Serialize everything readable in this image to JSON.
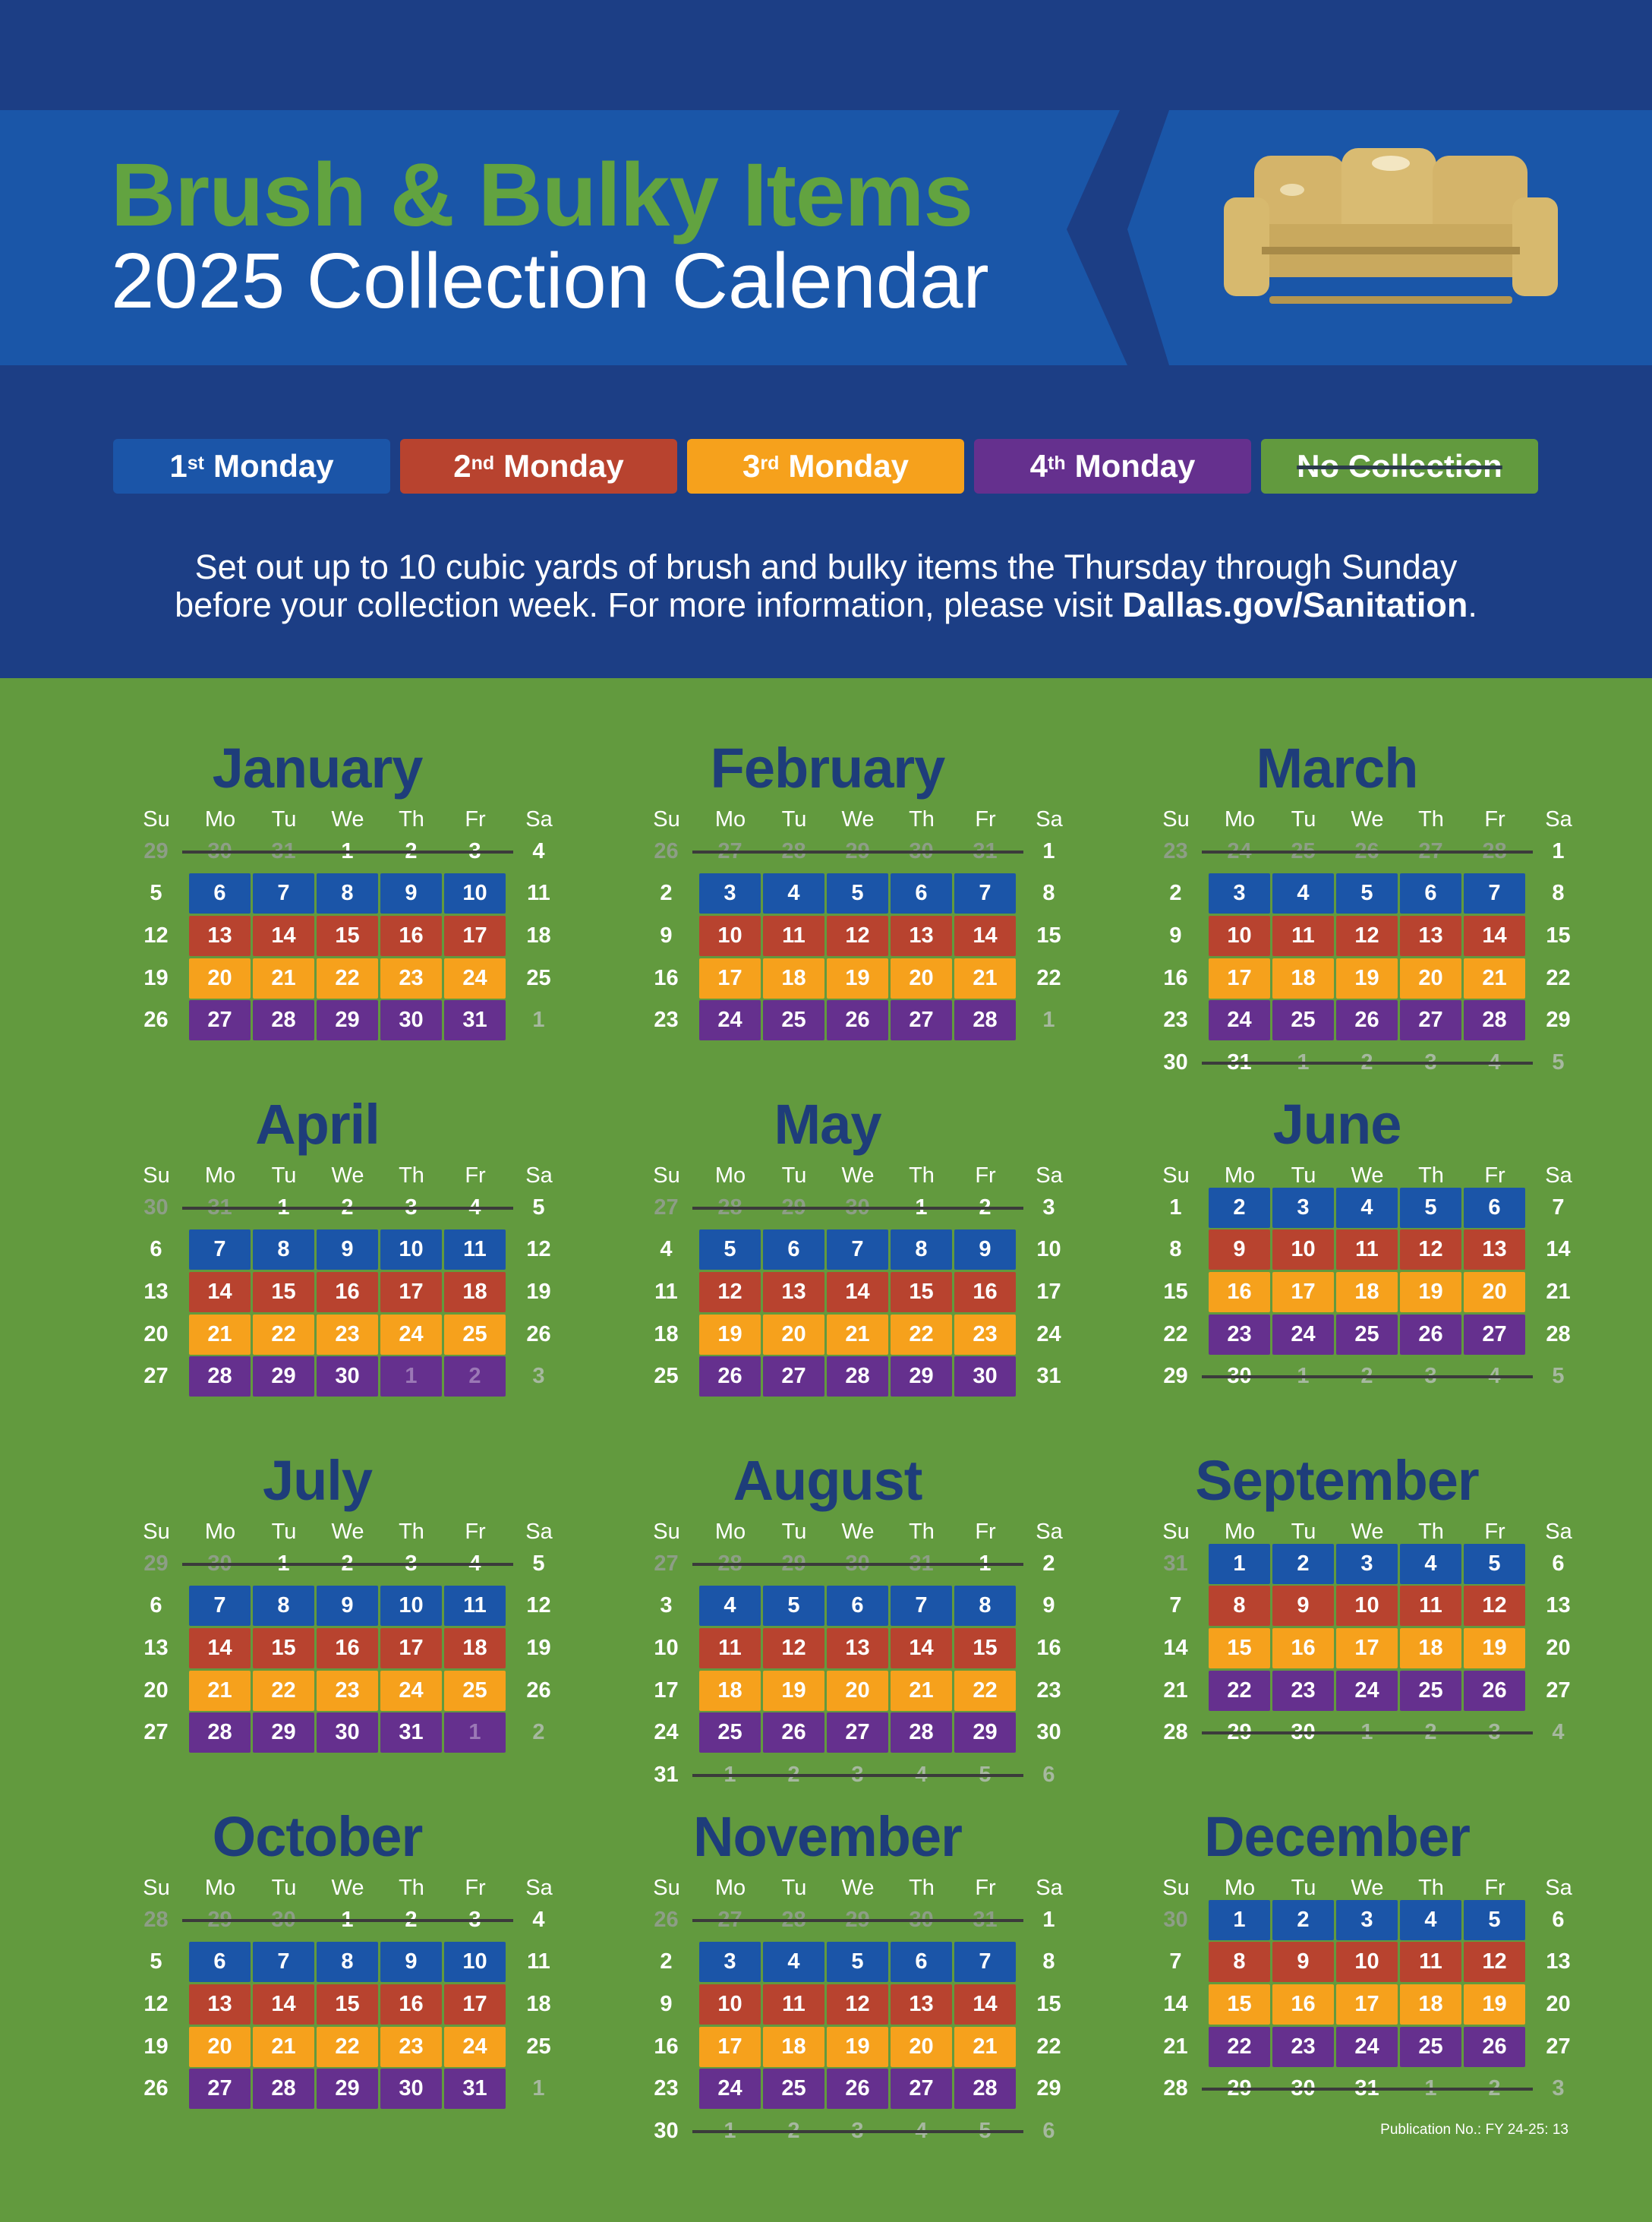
{
  "header": {
    "title_line1": "Brush & Bulky Items",
    "title_line2": "2025 Collection Calendar",
    "image_icon": "sofa-icon"
  },
  "legend": [
    {
      "num": "1",
      "suffix": "st",
      "label": "Monday",
      "color": "#1b55a8"
    },
    {
      "num": "2",
      "suffix": "nd",
      "label": "Monday",
      "color": "#b8432f"
    },
    {
      "num": "3",
      "suffix": "rd",
      "label": "Monday",
      "color": "#f6a11c"
    },
    {
      "num": "4",
      "suffix": "th",
      "label": "Monday",
      "color": "#65308e"
    },
    {
      "num": "",
      "suffix": "",
      "label": "No Collection",
      "color": "#629a3e"
    }
  ],
  "intro": {
    "line1": "Set out up to 10 cubic yards of brush and bulky items the Thursday through Sunday",
    "line2_prefix": "before your collection week. For more information, please visit ",
    "link": "Dallas.gov/Sanitation",
    "line2_suffix": "."
  },
  "weekdays": [
    "Su",
    "Mo",
    "Tu",
    "We",
    "Th",
    "Fr",
    "Sa"
  ],
  "months": [
    {
      "name": "January",
      "lead": [
        "29",
        "30",
        "31"
      ],
      "days": 31,
      "trail": [
        "1"
      ],
      "first_week": [
        "1",
        "2",
        "3"
      ],
      "blue_start": 6,
      "tail_week_end": 31
    },
    {
      "name": "February",
      "lead": [
        "26",
        "27",
        "28",
        "29",
        "30",
        "31"
      ],
      "days": 28,
      "trail": [
        "1"
      ]
    },
    {
      "name": "March",
      "lead": [
        "23",
        "24",
        "25",
        "26",
        "27",
        "28"
      ],
      "days": 31
    },
    {
      "name": "April",
      "lead": [
        "30",
        "31"
      ],
      "days": 30,
      "trail": [
        "3"
      ]
    },
    {
      "name": "May",
      "lead": [
        "27",
        "28",
        "29",
        "30"
      ],
      "days": 31
    },
    {
      "name": "June",
      "lead": [],
      "days": 30
    },
    {
      "name": "July",
      "lead": [
        "29",
        "30"
      ],
      "days": 31,
      "trail": [
        "2"
      ]
    },
    {
      "name": "August",
      "lead": [
        "27",
        "28",
        "29",
        "30",
        "31"
      ],
      "days": 31
    },
    {
      "name": "September",
      "lead": [
        "31"
      ],
      "days": 30
    },
    {
      "name": "October",
      "lead": [
        "28",
        "29",
        "30"
      ],
      "days": 31
    },
    {
      "name": "November",
      "lead": [
        "26",
        "27",
        "28",
        "29",
        "30",
        "31"
      ],
      "days": 30
    },
    {
      "name": "December",
      "lead": [
        "30"
      ],
      "days": 31
    }
  ],
  "colors": {
    "week1": "#1b55a8",
    "week2": "#b8432f",
    "week3": "#f6a11c",
    "week4": "#65308e",
    "background": "#629a3e",
    "header": "#1c3e85"
  },
  "publication": "Publication No.: FY 24-25: 13"
}
